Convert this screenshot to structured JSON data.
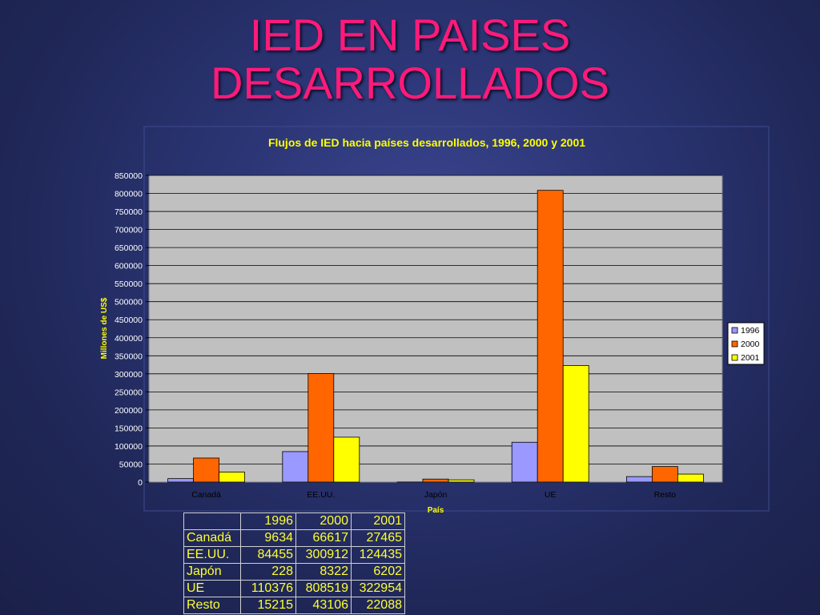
{
  "slide": {
    "title_line1": "IED EN PAISES",
    "title_line2": "DESARROLLADOS"
  },
  "chart_data": {
    "type": "bar",
    "title": "Flujos de IED hacia países desarrollados, 1996, 2000 y 2001",
    "xlabel": "País",
    "ylabel": "Millones de US$",
    "categories": [
      "Canadá",
      "EE.UU.",
      "Japón",
      "UE",
      "Resto"
    ],
    "series": [
      {
        "name": "1996",
        "values": [
          9634,
          84455,
          228,
          110376,
          15215
        ],
        "color": "#9999ff"
      },
      {
        "name": "2000",
        "values": [
          66617,
          300912,
          8322,
          808519,
          43106
        ],
        "color": "#ff6600"
      },
      {
        "name": "2001",
        "values": [
          27465,
          124435,
          6202,
          322954,
          22088
        ],
        "color": "#ffff00"
      }
    ],
    "ylim": [
      0,
      850000
    ],
    "ytick_step": 50000,
    "grid": true,
    "legend": "right",
    "plot_background": "#c0c0c0"
  },
  "table": {
    "header": [
      "",
      "1996",
      "2000",
      "2001"
    ],
    "rows": [
      [
        "Canadá",
        "9634",
        "66617",
        "27465"
      ],
      [
        "EE.UU.",
        "84455",
        "300912",
        "124435"
      ],
      [
        "Japón",
        "228",
        "8322",
        "6202"
      ],
      [
        "UE",
        "110376",
        "808519",
        "322954"
      ],
      [
        "Resto",
        "15215",
        "43106",
        "22088"
      ]
    ]
  }
}
